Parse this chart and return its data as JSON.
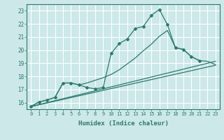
{
  "title": "",
  "xlabel": "Humidex (Indice chaleur)",
  "bg_color": "#cce8e8",
  "grid_color": "#ffffff",
  "line_color": "#2d7a6e",
  "xlim": [
    -0.5,
    23.5
  ],
  "ylim": [
    15.5,
    23.5
  ],
  "xticks": [
    0,
    1,
    2,
    3,
    4,
    5,
    6,
    7,
    8,
    9,
    10,
    11,
    12,
    13,
    14,
    15,
    16,
    17,
    18,
    19,
    20,
    21,
    22,
    23
  ],
  "yticks": [
    16,
    17,
    18,
    19,
    20,
    21,
    22,
    23
  ],
  "line1_x": [
    0,
    1,
    2,
    3,
    4,
    5,
    6,
    7,
    8,
    9,
    10,
    11,
    12,
    13,
    14,
    15,
    16,
    17,
    18,
    19,
    20,
    21
  ],
  "line1_y": [
    15.7,
    16.05,
    16.2,
    16.4,
    17.5,
    17.5,
    17.35,
    17.15,
    17.05,
    17.15,
    19.75,
    20.5,
    20.85,
    21.65,
    21.8,
    22.65,
    23.1,
    21.95,
    20.2,
    20.05,
    19.5,
    19.2
  ],
  "line2_x": [
    0,
    1,
    2,
    3,
    4,
    5,
    6,
    7,
    8,
    9,
    10,
    11,
    12,
    13,
    14,
    15,
    16,
    17,
    18,
    19,
    20,
    21,
    22,
    23
  ],
  "line2_y": [
    15.7,
    16.05,
    16.2,
    16.4,
    17.5,
    17.5,
    17.35,
    17.5,
    17.7,
    17.9,
    18.15,
    18.5,
    18.95,
    19.4,
    19.95,
    20.45,
    21.05,
    21.5,
    20.2,
    20.05,
    19.5,
    19.2,
    19.15,
    18.9
  ],
  "line3_x": [
    0,
    23
  ],
  "line3_y": [
    15.7,
    19.15
  ],
  "line4_x": [
    0,
    23
  ],
  "line4_y": [
    15.7,
    18.85
  ]
}
